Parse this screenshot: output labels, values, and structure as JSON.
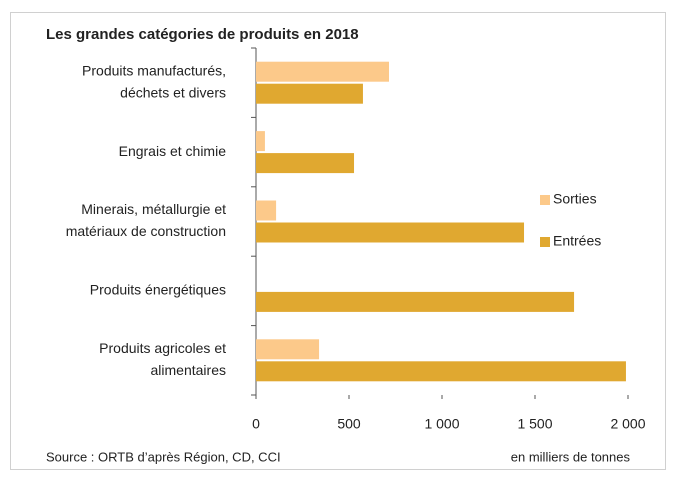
{
  "chart_data": {
    "type": "hbar",
    "title": "Les grandes catégories de produits en 2018",
    "categories": [
      [
        "Produits manufacturés,",
        "déchets et divers"
      ],
      [
        "Engrais et chimie"
      ],
      [
        "Minerais, métallurgie et",
        "matériaux de construction"
      ],
      [
        "Produits énergétiques"
      ],
      [
        "Produits agricoles et",
        "alimentaires"
      ]
    ],
    "series": [
      {
        "name": "Sorties",
        "color": "#fcc98a",
        "values": [
          715,
          48,
          108,
          0,
          339
        ]
      },
      {
        "name": "Entrées",
        "color": "#e0a830",
        "values": [
          575,
          527,
          1441,
          1710,
          1989
        ]
      }
    ],
    "xlim": [
      0,
      2000
    ],
    "xticks": [
      0,
      500,
      {
        "value": 1000,
        "label": "1 000"
      },
      {
        "value": 1500,
        "label": "1 500"
      },
      {
        "value": 2000,
        "label": "2 000"
      }
    ],
    "source": "Source : ORTB d’après Région, CD, CCI",
    "unit_note": "en milliers de tonnes"
  }
}
